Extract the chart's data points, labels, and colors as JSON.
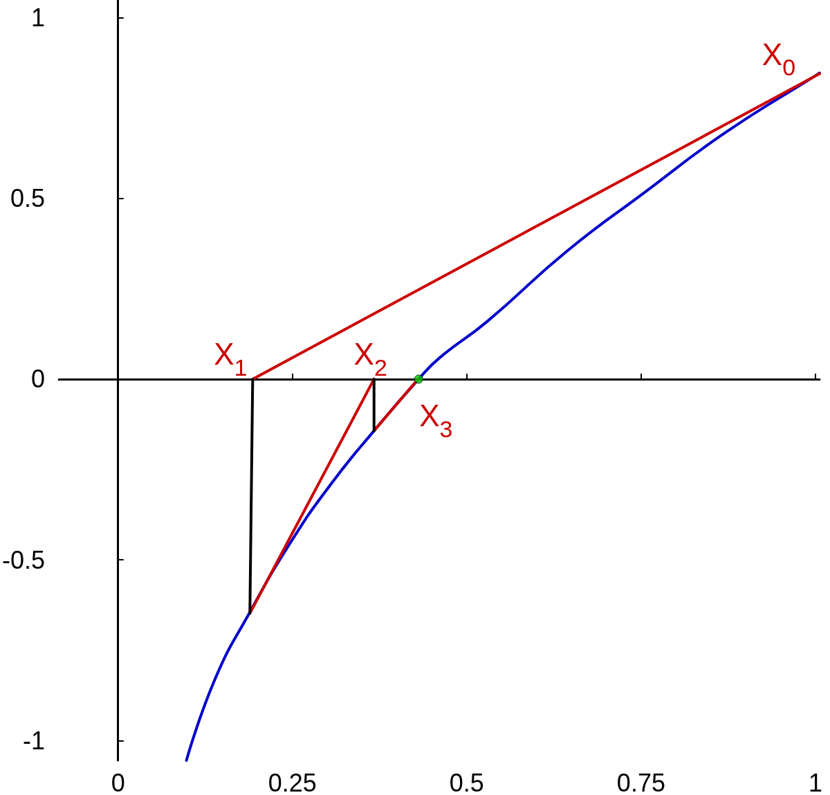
{
  "chart_data": {
    "type": "line",
    "xlim": [
      -0.085,
      1.006
    ],
    "ylim": [
      -1.055,
      1.049
    ],
    "xticks": [
      0,
      0.25,
      0.5,
      0.75,
      1
    ],
    "yticks": [
      -1,
      -0.5,
      0,
      0.5,
      1
    ],
    "marker": "none",
    "line_style": "solid",
    "series": [
      {
        "color": "#0000cc",
        "x": [
          0.098,
          0.139,
          0.188,
          0.248,
          0.305,
          0.367,
          0.431,
          0.461,
          0.529,
          0.643,
          0.756,
          0.87,
          1.002,
          1.006
        ],
        "values": [
          -1.055,
          -0.83,
          -0.648,
          -0.45,
          -0.291,
          -0.143,
          0,
          0.059,
          0.159,
          0.353,
          0.518,
          0.681,
          0.842,
          0.847
        ]
      },
      {
        "color": "#cc0000",
        "x": [
          0.193,
          1.006
        ],
        "values": [
          0,
          0.845
        ]
      },
      {
        "color": "#cc0000",
        "x": [
          0.189,
          0.367
        ],
        "values": [
          -0.648,
          0
        ]
      },
      {
        "color": "#cc0000",
        "x": [
          0.367,
          0.43
        ],
        "values": [
          -0.143,
          0
        ]
      },
      {
        "color": "#000000",
        "x": [
          0.193,
          0.189
        ],
        "values": [
          0,
          -0.648
        ]
      },
      {
        "color": "#000000",
        "x": [
          0.367,
          0.367
        ],
        "values": [
          0,
          -0.143
        ]
      },
      {
        "type": "scatter",
        "marker": "circle",
        "color": "#00cc00",
        "x": [
          0.431
        ],
        "values": [
          0
        ]
      }
    ],
    "annotations": [
      {
        "text": "X$_{0}$",
        "x": 1.002,
        "y": 0.842
      },
      {
        "text": "X$_{1}$",
        "x": 0.193,
        "y": 0
      },
      {
        "text": "X$_{2}$",
        "x": 0.367,
        "y": 0
      },
      {
        "text": "X$_{3}$",
        "x": 0.431,
        "y": 0
      }
    ]
  }
}
